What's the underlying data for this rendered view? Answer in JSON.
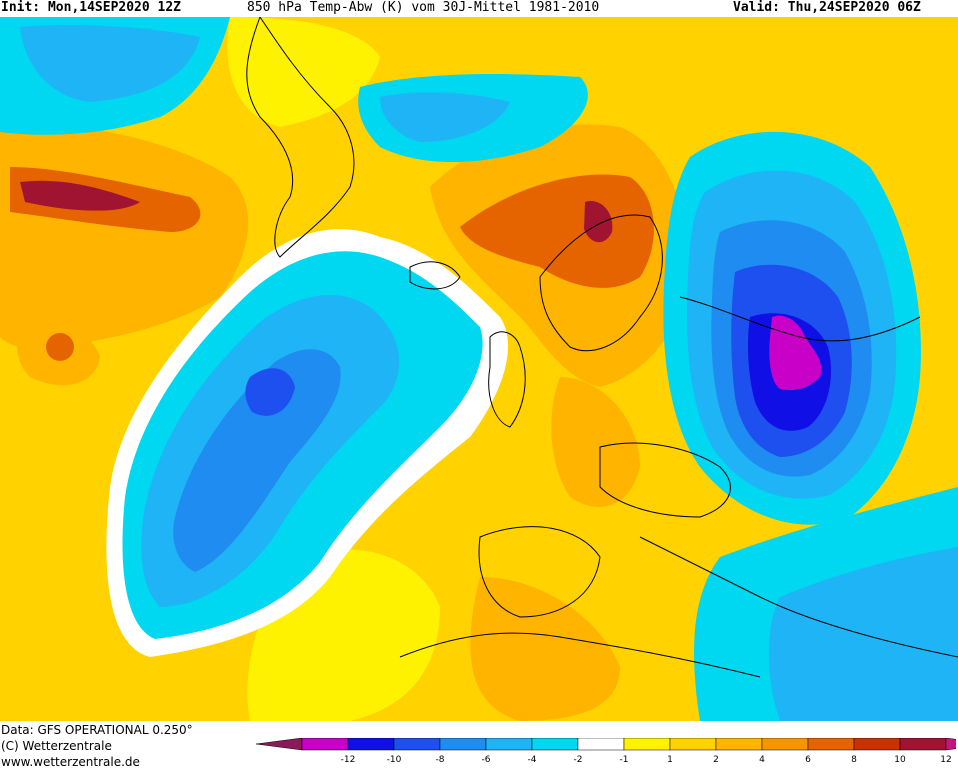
{
  "header": {
    "init": "Init: Mon,14SEP2020 12Z",
    "title": "850 hPa Temp-Abw (K) vom 30J-Mittel 1981-2010",
    "valid": "Valid: Thu,24SEP2020 06Z"
  },
  "footer": {
    "data_line": "Data: GFS OPERATIONAL 0.250°",
    "copyright": "(C) Wetterzentrale",
    "url": "www.wetterzentrale.de"
  },
  "legend": {
    "labels": [
      "-12",
      "-10",
      "-8",
      "-6",
      "-4",
      "-2",
      "-1",
      "1",
      "2",
      "4",
      "6",
      "8",
      "10",
      "12"
    ],
    "colors": [
      "#8b1a5a",
      "#c800c8",
      "#1010e6",
      "#1e50f0",
      "#1e8cf0",
      "#1eb4f5",
      "#00d7f0",
      "#ffffff",
      "#fff200",
      "#ffd200",
      "#ffb400",
      "#f59600",
      "#e66400",
      "#c83200",
      "#a01432",
      "#c8147d"
    ]
  },
  "map_colors": {
    "sea_anomaly_warm": "#fff200",
    "contour_line": "#000000"
  }
}
